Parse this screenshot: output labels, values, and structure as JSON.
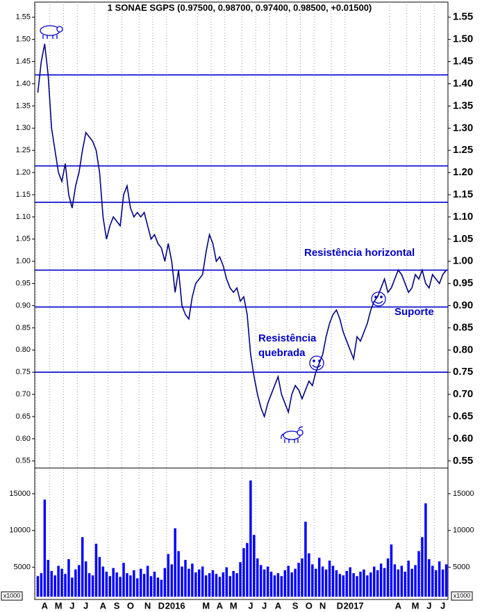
{
  "chart_data": {
    "type": "line",
    "title": "1 SONAE SGPS (0.97500, 0.98700, 0.97400, 0.98500, +0.01500)",
    "color": "#000080",
    "categories": [
      null,
      null,
      "A",
      null,
      null,
      null,
      "M",
      null,
      null,
      null,
      "J",
      null,
      null,
      null,
      "J",
      null,
      null,
      null,
      null,
      "A",
      null,
      null,
      null,
      "S",
      null,
      null,
      null,
      "O",
      null,
      null,
      null,
      null,
      "N",
      null,
      null,
      null,
      "D",
      null,
      null,
      null,
      "2016",
      null,
      null,
      null,
      null,
      null,
      null,
      null,
      null,
      "M",
      null,
      null,
      null,
      "A",
      null,
      null,
      null,
      "M",
      null,
      null,
      null,
      null,
      "J",
      null,
      null,
      null,
      "J",
      null,
      null,
      null,
      "A",
      null,
      null,
      null,
      null,
      "S",
      null,
      null,
      null,
      "O",
      null,
      null,
      null,
      "N",
      null,
      null,
      null,
      null,
      "D",
      null,
      null,
      null,
      "2017",
      null,
      null,
      null,
      null,
      null,
      null,
      null,
      null,
      null,
      null,
      null,
      null,
      "A",
      null,
      null,
      null,
      null,
      "M",
      null,
      null,
      null,
      "J",
      null,
      null,
      null,
      "J",
      null
    ],
    "values": [
      1.38,
      1.45,
      1.49,
      1.42,
      1.3,
      1.25,
      1.2,
      1.18,
      1.22,
      1.15,
      1.12,
      1.17,
      1.2,
      1.25,
      1.29,
      1.28,
      1.27,
      1.25,
      1.2,
      1.1,
      1.05,
      1.08,
      1.1,
      1.09,
      1.08,
      1.15,
      1.17,
      1.12,
      1.1,
      1.11,
      1.1,
      1.11,
      1.08,
      1.05,
      1.06,
      1.04,
      1.03,
      1.0,
      1.04,
      1.0,
      0.93,
      0.98,
      0.9,
      0.88,
      0.87,
      0.92,
      0.95,
      0.96,
      0.97,
      1.02,
      1.06,
      1.04,
      1.0,
      1.01,
      0.99,
      0.96,
      0.94,
      0.93,
      0.94,
      0.91,
      0.92,
      0.88,
      0.79,
      0.74,
      0.7,
      0.67,
      0.65,
      0.68,
      0.7,
      0.72,
      0.74,
      0.7,
      0.68,
      0.66,
      0.7,
      0.72,
      0.71,
      0.69,
      0.71,
      0.73,
      0.72,
      0.75,
      0.77,
      0.79,
      0.83,
      0.86,
      0.88,
      0.89,
      0.87,
      0.84,
      0.82,
      0.8,
      0.78,
      0.83,
      0.82,
      0.84,
      0.86,
      0.89,
      0.91,
      0.92,
      0.94,
      0.96,
      0.93,
      0.94,
      0.96,
      0.98,
      0.97,
      0.95,
      0.93,
      0.94,
      0.97,
      0.96,
      0.98,
      0.95,
      0.94,
      0.97,
      0.96,
      0.95,
      0.97,
      0.98
    ],
    "ylim": [
      0.534,
      1.581
    ],
    "yticks": [
      0.55,
      {
        "value": 0.6,
        "label": "0.60"
      },
      0.65,
      {
        "value": 0.7,
        "label": "0.70"
      },
      0.75,
      {
        "value": 0.8,
        "label": "0.80"
      },
      0.85,
      {
        "value": 0.9,
        "label": "0.90"
      },
      0.95,
      {
        "value": 1,
        "label": "1.00"
      },
      1.05,
      {
        "value": 1.1,
        "label": "1.10"
      },
      1.15,
      {
        "value": 1.2,
        "label": "1.20"
      },
      1.25,
      {
        "value": 1.3,
        "label": "1.30"
      },
      1.35,
      {
        "value": 1.4,
        "label": "1.40"
      },
      1.45,
      {
        "value": 1.5,
        "label": "1.50"
      },
      1.55
    ],
    "levels": [
      1.42,
      1.215,
      1.133,
      0.98,
      0.897,
      0.75
    ],
    "level_color": "#0000cc",
    "annotations": [
      "Resistência horizontal",
      "Suporte",
      "Resistência",
      "quebrada"
    ],
    "volume": {
      "type": "bar",
      "color": "#0000ff",
      "unit": "x1000",
      "ylim": [
        1000,
        18300
      ],
      "yticks": [
        5000,
        10000,
        15000
      ],
      "values": [
        3800,
        4200,
        14200,
        6000,
        4500,
        3900,
        5200,
        4800,
        4100,
        6100,
        3600,
        4700,
        5300,
        9100,
        5800,
        4200,
        3900,
        8200,
        6400,
        5100,
        4400,
        3800,
        4900,
        4300,
        3700,
        5600,
        4200,
        3900,
        4600,
        3500,
        4800,
        4100,
        5200,
        3800,
        4400,
        3600,
        3300,
        4900,
        6800,
        5400,
        10300,
        7200,
        5100,
        6000,
        4800,
        5500,
        4300,
        4700,
        5100,
        3900,
        4200,
        4600,
        4100,
        3700,
        4300,
        5000,
        3800,
        4500,
        4200,
        5700,
        7600,
        8300,
        16800,
        9400,
        6200,
        5300,
        4700,
        5100,
        4400,
        3900,
        4200,
        3800,
        4600,
        5200,
        4300,
        4800,
        5600,
        6200,
        11200,
        6900,
        5400,
        4800,
        6300,
        5100,
        4700,
        5900,
        5200,
        4600,
        4100,
        3900,
        4500,
        5000,
        4200,
        3800,
        4400,
        4700,
        3900,
        4300,
        5100,
        4600,
        5500,
        4900,
        6200,
        8100,
        5400,
        4700,
        5200,
        4400,
        5900,
        4800,
        5300,
        7200,
        9100,
        13700,
        6100,
        5200,
        4600,
        5800,
        4700,
        5400
      ]
    }
  }
}
